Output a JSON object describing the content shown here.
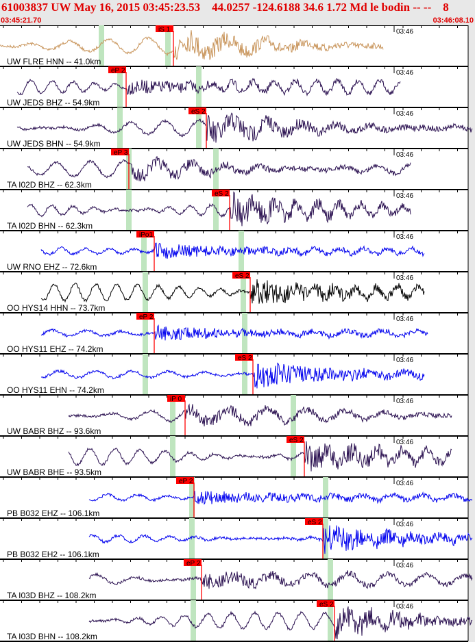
{
  "header": {
    "title": "61003837 UW May 16, 2015 03:45:23.53    44.0257 -124.6188 34.6 1.72 Md le bodin -- --    8",
    "start_time": "03:45:21.70",
    "end_time": "03:46:08.10"
  },
  "chart_data": {
    "type": "line",
    "x_range": [
      "03:45:21.70",
      "03:46:08.10"
    ],
    "tick_label": "03:46",
    "colors": {
      "pick_flag": "#ff0000",
      "window": "#bfe5bf",
      "tan": "#c8945a",
      "purple": "#2a1050",
      "blue": "#0000ee",
      "black": "#000000"
    },
    "series": [
      {
        "name": "UW FLRE HNN -- 41.0km",
        "color": "tan",
        "pick": "iS 1",
        "pick_t": 0.37
      },
      {
        "name": "UW JEDS BHZ -- 54.9km",
        "color": "purple",
        "pick": "eP 2",
        "pick_t": 0.27
      },
      {
        "name": "UW JEDS BHN -- 54.9km",
        "color": "purple",
        "pick": "eS 2",
        "pick_t": 0.44
      },
      {
        "name": "TA I02D BHZ -- 62.3km",
        "color": "purple",
        "pick": "eP 3",
        "pick_t": 0.275
      },
      {
        "name": "TA I02D BHN -- 62.3km",
        "color": "purple",
        "pick": "eS 2",
        "pick_t": 0.49
      },
      {
        "name": "UW RNO EHZ -- 72.6km",
        "color": "blue",
        "pick": "iPo1",
        "pick_t": 0.33
      },
      {
        "name": "OO HYS14 HHN -- 73.7km",
        "color": "black",
        "pick": "eS 2",
        "pick_t": 0.535
      },
      {
        "name": "OO HYS11 EHZ -- 74.2km",
        "color": "blue",
        "pick": "eP 2",
        "pick_t": 0.33
      },
      {
        "name": "OO HYS11 EHN -- 74.2km",
        "color": "blue",
        "pick": "eS 2",
        "pick_t": 0.54
      },
      {
        "name": "UW BABR BHZ -- 93.6km",
        "color": "purple",
        "pick": "iP 0",
        "pick_t": 0.395
      },
      {
        "name": "UW BABR BHE -- 93.5km",
        "color": "purple",
        "pick": "eS 2",
        "pick_t": 0.65
      },
      {
        "name": "PB B032 EHZ -- 106.1km",
        "color": "blue",
        "pick": "eP 2",
        "pick_t": 0.415
      },
      {
        "name": "PB B032 EH2 -- 106.1km",
        "color": "blue",
        "pick": "eS 2",
        "pick_t": 0.69
      },
      {
        "name": "TA I03D BHZ -- 108.2km",
        "color": "purple",
        "pick": "eP 2",
        "pick_t": 0.43
      },
      {
        "name": "TA I03D BHN -- 108.2km",
        "color": "purple",
        "pick": "eS 2",
        "pick_t": 0.715
      }
    ]
  }
}
